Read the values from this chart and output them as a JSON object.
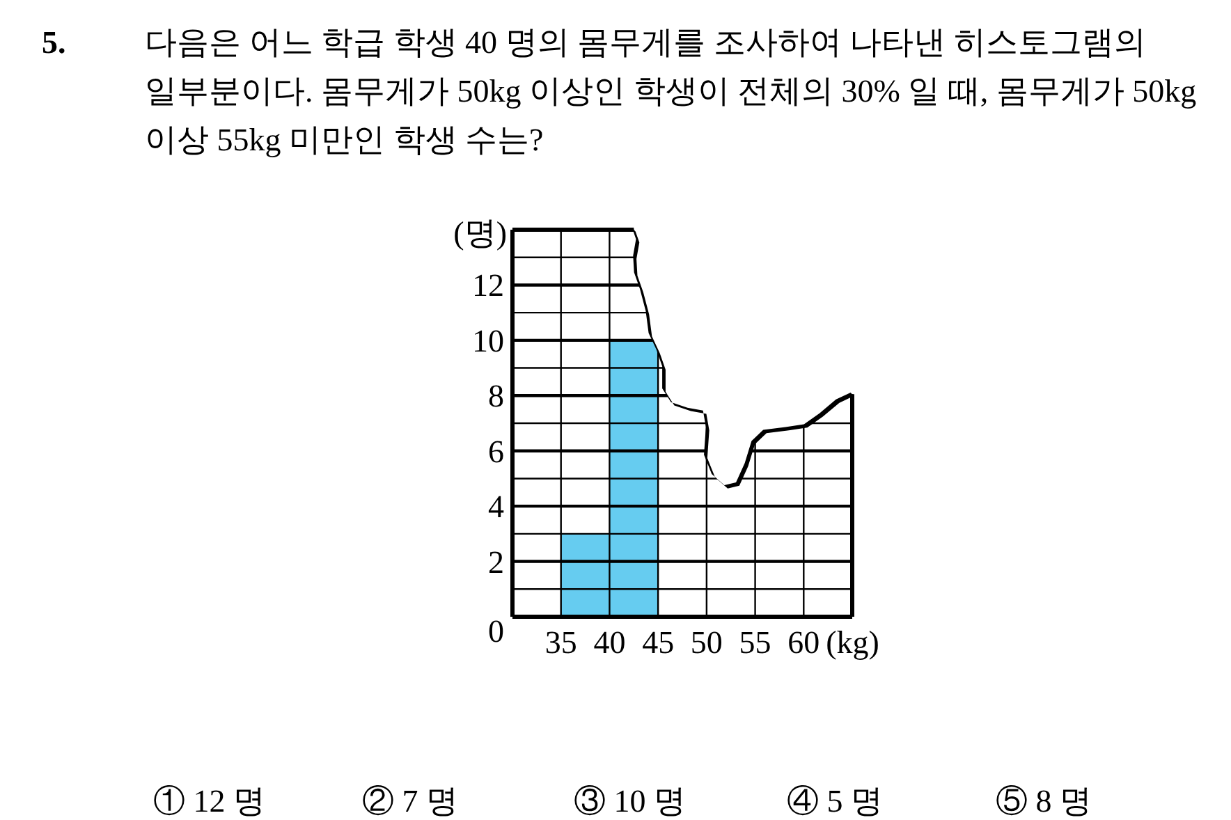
{
  "chart_data": {
    "type": "histogram",
    "title": "다음은 어느 학급 학생 40 명의 몸무게를 조사하여 나타낸 히스토그램의 일부분이다. 몸무게가 50kg 이상인 학생이 전체의 30% 일 때, 몸무게가 50kg 이상 55kg 미만인 학생 수는?",
    "xlabel": "(kg)",
    "ylabel": "(명)",
    "bins": [
      35,
      40,
      45,
      50,
      55,
      60
    ],
    "values": [
      3,
      10,
      null,
      null,
      null
    ],
    "color": "#66ccf0",
    "xlim": [
      30,
      65
    ],
    "ylim": [
      0,
      14
    ],
    "xticks": [
      {
        "value": 30,
        "label": null
      },
      35,
      40,
      45,
      50,
      55,
      60,
      {
        "value": 65,
        "label": null
      }
    ],
    "yticks": [
      0,
      {
        "value": 1,
        "label": null
      },
      2,
      {
        "value": 3,
        "label": null
      },
      4,
      {
        "value": 5,
        "label": null
      },
      6,
      {
        "value": 7,
        "label": null
      },
      8,
      {
        "value": 9,
        "label": null
      },
      10,
      {
        "value": 11,
        "label": null
      },
      12,
      {
        "value": 13,
        "label": null
      },
      {
        "value": 14,
        "label": null
      }
    ],
    "grid": true,
    "annotations": [
      "5.",
      "① 12 명",
      "② 7 명",
      "③ 10 명",
      "④ 5 명",
      "⑤ 8 명"
    ]
  }
}
